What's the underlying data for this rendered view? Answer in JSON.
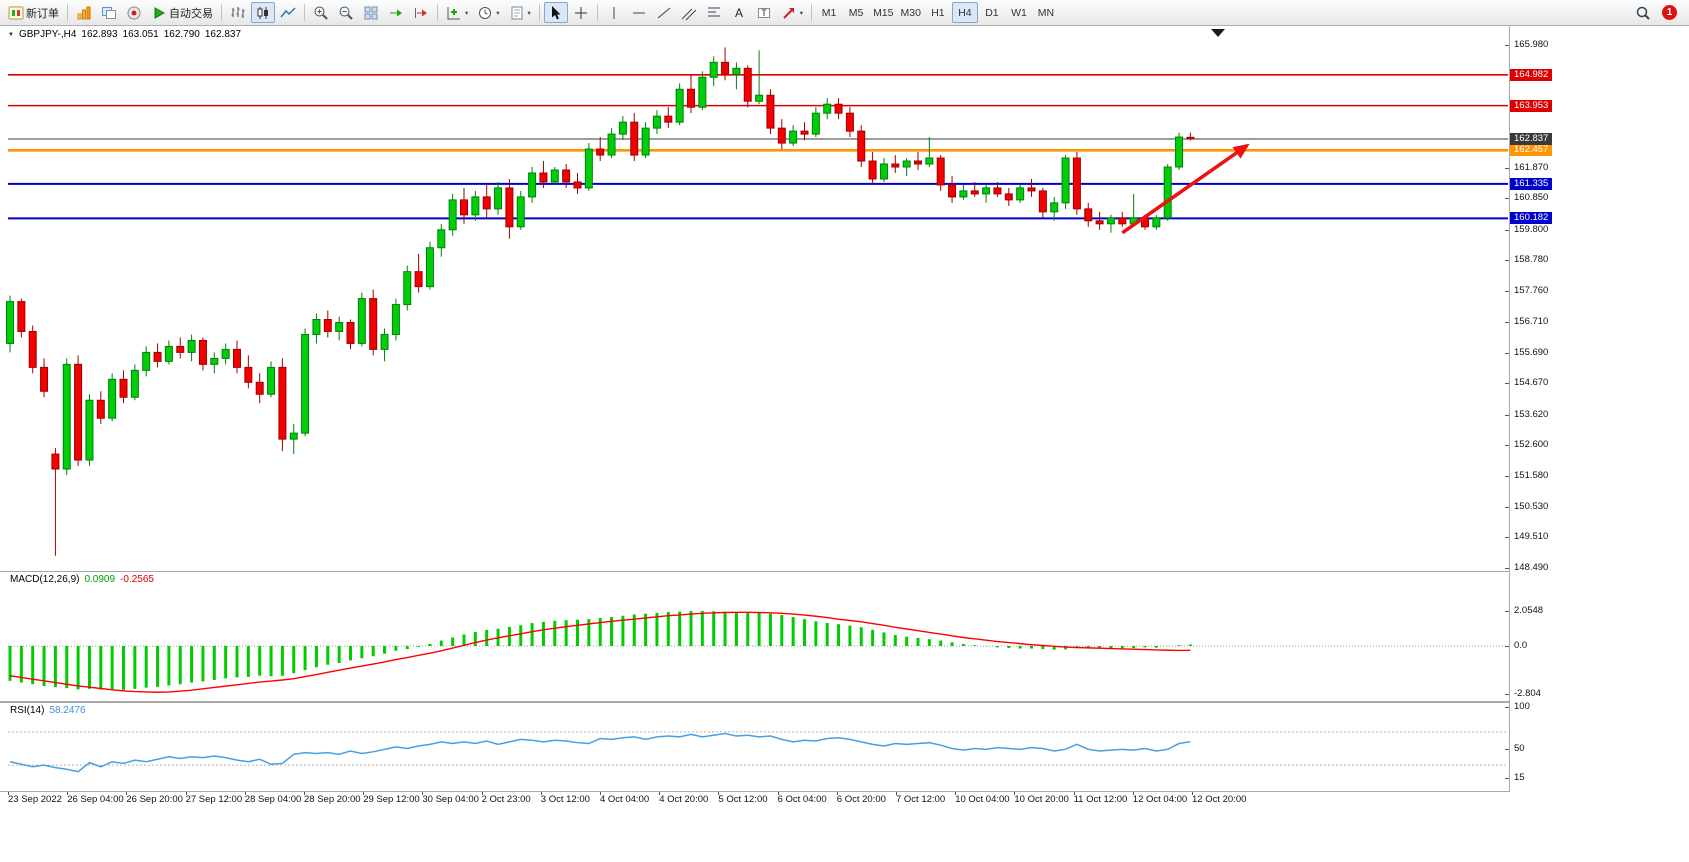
{
  "toolbar": {
    "new_order_label": "新订单",
    "autotrading_label": "自动交易",
    "timeframes": [
      "M1",
      "M5",
      "M15",
      "M30",
      "H1",
      "H4",
      "D1",
      "W1",
      "MN"
    ],
    "active_timeframe": "H4",
    "notification_count": "1"
  },
  "chart": {
    "symbol_period": "GBPJPY-,H4",
    "open": "162.893",
    "high": "163.051",
    "low": "162.790",
    "close": "162.837"
  },
  "macd": {
    "name": "MACD(12,26,9)",
    "main_value": "0.0909",
    "signal_value": "-0.2565",
    "hist_color": "#00cc00",
    "signal_color": "#ff0000",
    "scale": [
      {
        "label": "2.0548",
        "value": 2.0548
      },
      {
        "label": "0.0",
        "value": 0
      },
      {
        "label": "-2.804",
        "value": -2.804
      }
    ],
    "histogram": [
      -2.05,
      -2.15,
      -2.25,
      -2.35,
      -2.42,
      -2.48,
      -2.55,
      -2.52,
      -2.56,
      -2.6,
      -2.58,
      -2.52,
      -2.45,
      -2.4,
      -2.32,
      -2.25,
      -2.15,
      -2.08,
      -2.0,
      -1.9,
      -1.85,
      -1.82,
      -1.75,
      -1.78,
      -1.75,
      -1.6,
      -1.42,
      -1.25,
      -1.1,
      -1.0,
      -0.85,
      -0.72,
      -0.6,
      -0.45,
      -0.28,
      -0.18,
      -0.05,
      0.12,
      0.32,
      0.5,
      0.68,
      0.82,
      0.95,
      1.02,
      1.12,
      1.22,
      1.35,
      1.42,
      1.48,
      1.52,
      1.55,
      1.58,
      1.65,
      1.7,
      1.78,
      1.85,
      1.9,
      1.95,
      2.0,
      2.02,
      2.05,
      2.05,
      2.04,
      2.02,
      2.0,
      1.98,
      1.95,
      1.9,
      1.82,
      1.7,
      1.58,
      1.45,
      1.35,
      1.28,
      1.2,
      1.1,
      0.95,
      0.8,
      0.65,
      0.55,
      0.48,
      0.4,
      0.32,
      0.22,
      0.12,
      0.05,
      -0.02,
      -0.08,
      -0.12,
      -0.15,
      -0.15,
      -0.18,
      -0.22,
      -0.2,
      -0.1,
      -0.12,
      -0.15,
      -0.16,
      -0.14,
      -0.12,
      -0.08,
      -0.1,
      -0.02,
      0.05,
      0.09
    ],
    "signal": [
      -1.75,
      -1.85,
      -1.95,
      -2.05,
      -2.15,
      -2.25,
      -2.35,
      -2.42,
      -2.5,
      -2.58,
      -2.64,
      -2.68,
      -2.7,
      -2.72,
      -2.7,
      -2.66,
      -2.6,
      -2.52,
      -2.44,
      -2.36,
      -2.28,
      -2.2,
      -2.12,
      -2.06,
      -2.0,
      -1.92,
      -1.8,
      -1.68,
      -1.55,
      -1.42,
      -1.3,
      -1.18,
      -1.06,
      -0.94,
      -0.8,
      -0.68,
      -0.55,
      -0.42,
      -0.28,
      -0.12,
      0.04,
      0.2,
      0.35,
      0.48,
      0.6,
      0.72,
      0.84,
      0.95,
      1.05,
      1.14,
      1.22,
      1.3,
      1.38,
      1.45,
      1.52,
      1.58,
      1.65,
      1.72,
      1.78,
      1.83,
      1.88,
      1.92,
      1.95,
      1.97,
      1.98,
      1.98,
      1.97,
      1.95,
      1.92,
      1.88,
      1.82,
      1.75,
      1.67,
      1.58,
      1.5,
      1.42,
      1.32,
      1.22,
      1.1,
      1.0,
      0.9,
      0.8,
      0.7,
      0.6,
      0.5,
      0.42,
      0.34,
      0.26,
      0.2,
      0.14,
      0.08,
      0.03,
      -0.02,
      -0.06,
      -0.09,
      -0.11,
      -0.13,
      -0.15,
      -0.17,
      -0.19,
      -0.21,
      -0.23,
      -0.25,
      -0.26,
      -0.2565
    ]
  },
  "rsi": {
    "name": "RSI(14)",
    "value": "58.2476",
    "line_color": "#46a0e0",
    "scale": [
      {
        "label": "100",
        "value": 100
      },
      {
        "label": "50",
        "value": 50
      },
      {
        "label": "15",
        "value": 15
      }
    ],
    "levels": [
      70,
      30
    ],
    "values": [
      34,
      31,
      28,
      30,
      27,
      25,
      22,
      33,
      28,
      34,
      32,
      36,
      34,
      37,
      40,
      38,
      40,
      39,
      41,
      39,
      36,
      34,
      37,
      31,
      32,
      43,
      45,
      44,
      45,
      43,
      47,
      44,
      46,
      49,
      52,
      50,
      53,
      55,
      58,
      56,
      58,
      56,
      59,
      55,
      58,
      61,
      60,
      58,
      60,
      59,
      57,
      56,
      62,
      61,
      63,
      64,
      61,
      64,
      65,
      64,
      67,
      64,
      66,
      68,
      65,
      66,
      64,
      65,
      61,
      58,
      60,
      59,
      62,
      63,
      61,
      58,
      55,
      53,
      56,
      55,
      56,
      57,
      54,
      50,
      48,
      50,
      49,
      51,
      50,
      49,
      51,
      50,
      47,
      49,
      55,
      49,
      47,
      48,
      49,
      48,
      50,
      47,
      49,
      56,
      58.2
    ]
  },
  "chart_data": {
    "type": "candlestick",
    "symbol": "GBPJPY-",
    "period": "H4",
    "y_axis": {
      "min": 148.49,
      "max": 165.98,
      "ticks": [
        "165.980",
        "161.870",
        "160.850",
        "159.800",
        "158.780",
        "157.760",
        "156.710",
        "155.690",
        "154.670",
        "153.620",
        "152.600",
        "151.580",
        "150.530",
        "149.510",
        "148.490"
      ]
    },
    "levels": [
      {
        "price": 164.982,
        "label": "164.982",
        "color": "#dd0000",
        "width": 1.6
      },
      {
        "price": 163.953,
        "label": "163.953",
        "color": "#dd0000",
        "width": 1.6
      },
      {
        "price": 162.457,
        "label": "162.457",
        "color": "#ff9500",
        "width": 2.6
      },
      {
        "price": 161.335,
        "label": "161.335",
        "color": "#0000cc",
        "width": 2
      },
      {
        "price": 160.182,
        "label": "160.182",
        "color": "#0000cc",
        "width": 2
      }
    ],
    "current_price": {
      "price": 162.837,
      "label": "162.837",
      "color": "#3a3a3a"
    },
    "colors": {
      "up": "#00ce09",
      "up_border": "#00800c",
      "down": "#f40000",
      "down_border": "#a00000"
    },
    "x_labels": [
      "23 Sep 2022",
      "26 Sep 04:00",
      "26 Sep 20:00",
      "27 Sep 12:00",
      "28 Sep 04:00",
      "28 Sep 20:00",
      "29 Sep 12:00",
      "30 Sep 04:00",
      "2 Oct 23:00",
      "3 Oct 12:00",
      "4 Oct 04:00",
      "4 Oct 20:00",
      "5 Oct 12:00",
      "6 Oct 04:00",
      "6 Oct 20:00",
      "7 Oct 12:00",
      "10 Oct 04:00",
      "10 Oct 20:00",
      "11 Oct 12:00",
      "12 Oct 04:00",
      "12 Oct 20:00"
    ],
    "candles": [
      [
        156.0,
        157.6,
        155.7,
        157.4
      ],
      [
        157.4,
        157.5,
        156.2,
        156.4
      ],
      [
        156.4,
        156.6,
        155.0,
        155.2
      ],
      [
        155.2,
        155.5,
        154.2,
        154.4
      ],
      [
        152.3,
        152.5,
        148.9,
        151.8
      ],
      [
        151.8,
        155.5,
        151.6,
        155.3
      ],
      [
        155.3,
        155.6,
        151.9,
        152.1
      ],
      [
        152.1,
        154.3,
        151.9,
        154.1
      ],
      [
        154.1,
        154.4,
        153.3,
        153.5
      ],
      [
        153.5,
        155.0,
        153.4,
        154.8
      ],
      [
        154.8,
        155.1,
        154.0,
        154.2
      ],
      [
        154.2,
        155.3,
        154.1,
        155.1
      ],
      [
        155.1,
        155.9,
        154.9,
        155.7
      ],
      [
        155.7,
        156.0,
        155.2,
        155.4
      ],
      [
        155.4,
        156.1,
        155.3,
        155.9
      ],
      [
        155.9,
        156.2,
        155.5,
        155.7
      ],
      [
        155.7,
        156.3,
        155.4,
        156.1
      ],
      [
        156.1,
        156.2,
        155.1,
        155.3
      ],
      [
        155.3,
        155.7,
        155.0,
        155.5
      ],
      [
        155.5,
        156.0,
        155.3,
        155.8
      ],
      [
        155.8,
        156.1,
        155.0,
        155.2
      ],
      [
        155.2,
        155.6,
        154.5,
        154.7
      ],
      [
        154.7,
        155.0,
        154.0,
        154.3
      ],
      [
        154.3,
        155.4,
        154.2,
        155.2
      ],
      [
        155.2,
        155.5,
        152.4,
        152.8
      ],
      [
        152.8,
        153.3,
        152.3,
        153.0
      ],
      [
        153.0,
        156.5,
        152.9,
        156.3
      ],
      [
        156.3,
        157.0,
        156.0,
        156.8
      ],
      [
        156.8,
        157.1,
        156.2,
        156.4
      ],
      [
        156.4,
        156.9,
        156.1,
        156.7
      ],
      [
        156.7,
        156.8,
        155.8,
        156.0
      ],
      [
        156.0,
        157.7,
        155.9,
        157.5
      ],
      [
        157.5,
        157.8,
        155.6,
        155.8
      ],
      [
        155.8,
        156.5,
        155.4,
        156.3
      ],
      [
        156.3,
        157.5,
        156.1,
        157.3
      ],
      [
        157.3,
        158.6,
        157.1,
        158.4
      ],
      [
        158.4,
        159.0,
        157.7,
        157.9
      ],
      [
        157.9,
        159.4,
        157.8,
        159.2
      ],
      [
        159.2,
        160.0,
        158.9,
        159.8
      ],
      [
        159.8,
        161.0,
        159.6,
        160.8
      ],
      [
        160.8,
        161.2,
        160.0,
        160.3
      ],
      [
        160.3,
        161.1,
        160.1,
        160.9
      ],
      [
        160.9,
        161.3,
        160.2,
        160.5
      ],
      [
        160.5,
        161.4,
        160.3,
        161.2
      ],
      [
        161.2,
        161.5,
        159.5,
        159.9
      ],
      [
        159.9,
        161.1,
        159.8,
        160.9
      ],
      [
        160.9,
        161.9,
        160.7,
        161.7
      ],
      [
        161.7,
        162.1,
        161.2,
        161.4
      ],
      [
        161.4,
        161.9,
        161.3,
        161.8
      ],
      [
        161.8,
        162.0,
        161.2,
        161.4
      ],
      [
        161.4,
        161.7,
        161.0,
        161.2
      ],
      [
        161.2,
        162.7,
        161.1,
        162.5
      ],
      [
        162.5,
        162.9,
        162.1,
        162.3
      ],
      [
        162.3,
        163.2,
        162.2,
        163.0
      ],
      [
        163.0,
        163.6,
        162.8,
        163.4
      ],
      [
        163.4,
        163.7,
        162.1,
        162.3
      ],
      [
        162.3,
        163.4,
        162.2,
        163.2
      ],
      [
        163.2,
        163.8,
        163.0,
        163.6
      ],
      [
        163.6,
        163.9,
        163.2,
        163.4
      ],
      [
        163.4,
        164.7,
        163.3,
        164.5
      ],
      [
        164.5,
        165.0,
        163.7,
        163.9
      ],
      [
        163.9,
        165.1,
        163.8,
        164.9
      ],
      [
        164.9,
        165.6,
        164.6,
        165.4
      ],
      [
        165.4,
        165.9,
        164.8,
        165.0
      ],
      [
        165.0,
        165.4,
        164.5,
        165.2
      ],
      [
        165.2,
        165.3,
        163.9,
        164.1
      ],
      [
        164.1,
        165.8,
        164.0,
        164.3
      ],
      [
        164.3,
        164.5,
        163.0,
        163.2
      ],
      [
        163.2,
        163.5,
        162.5,
        162.7
      ],
      [
        162.7,
        163.3,
        162.6,
        163.1
      ],
      [
        163.1,
        163.4,
        162.8,
        163.0
      ],
      [
        163.0,
        163.9,
        162.9,
        163.7
      ],
      [
        163.7,
        164.2,
        163.5,
        164.0
      ],
      [
        164.0,
        164.2,
        163.5,
        163.7
      ],
      [
        163.7,
        163.9,
        162.9,
        163.1
      ],
      [
        163.1,
        163.3,
        161.9,
        162.1
      ],
      [
        162.1,
        162.4,
        161.3,
        161.5
      ],
      [
        161.5,
        162.2,
        161.4,
        162.0
      ],
      [
        162.0,
        162.3,
        161.7,
        161.9
      ],
      [
        161.9,
        162.2,
        161.6,
        162.1
      ],
      [
        162.1,
        162.4,
        161.8,
        162.0
      ],
      [
        162.0,
        162.9,
        161.9,
        162.2
      ],
      [
        162.2,
        162.3,
        161.1,
        161.3
      ],
      [
        161.3,
        161.6,
        160.7,
        160.9
      ],
      [
        160.9,
        161.3,
        160.8,
        161.1
      ],
      [
        161.1,
        161.4,
        160.9,
        161.0
      ],
      [
        161.0,
        161.3,
        160.7,
        161.2
      ],
      [
        161.2,
        161.4,
        160.9,
        161.0
      ],
      [
        161.0,
        161.2,
        160.6,
        160.8
      ],
      [
        160.8,
        161.3,
        160.7,
        161.2
      ],
      [
        161.2,
        161.5,
        160.9,
        161.1
      ],
      [
        161.1,
        161.2,
        160.2,
        160.4
      ],
      [
        160.4,
        160.9,
        160.1,
        160.7
      ],
      [
        160.7,
        162.3,
        160.5,
        162.2
      ],
      [
        162.2,
        162.4,
        160.3,
        160.5
      ],
      [
        160.5,
        160.7,
        159.9,
        160.1
      ],
      [
        160.1,
        160.4,
        159.8,
        160.0
      ],
      [
        160.0,
        160.3,
        159.7,
        160.2
      ],
      [
        160.2,
        160.4,
        159.9,
        160.0
      ],
      [
        160.0,
        161.0,
        159.9,
        160.2
      ],
      [
        160.2,
        160.3,
        159.8,
        159.9
      ],
      [
        159.9,
        160.3,
        159.8,
        160.2
      ],
      [
        160.2,
        162.0,
        160.1,
        161.9
      ],
      [
        161.9,
        163.05,
        161.8,
        162.9
      ],
      [
        162.893,
        163.051,
        162.79,
        162.837
      ]
    ],
    "annotations": {
      "trend_arrow": {
        "from_bar": 98,
        "from_price": 159.7,
        "to_bar": 109,
        "to_price": 162.62,
        "color": "#ee1111"
      }
    }
  }
}
